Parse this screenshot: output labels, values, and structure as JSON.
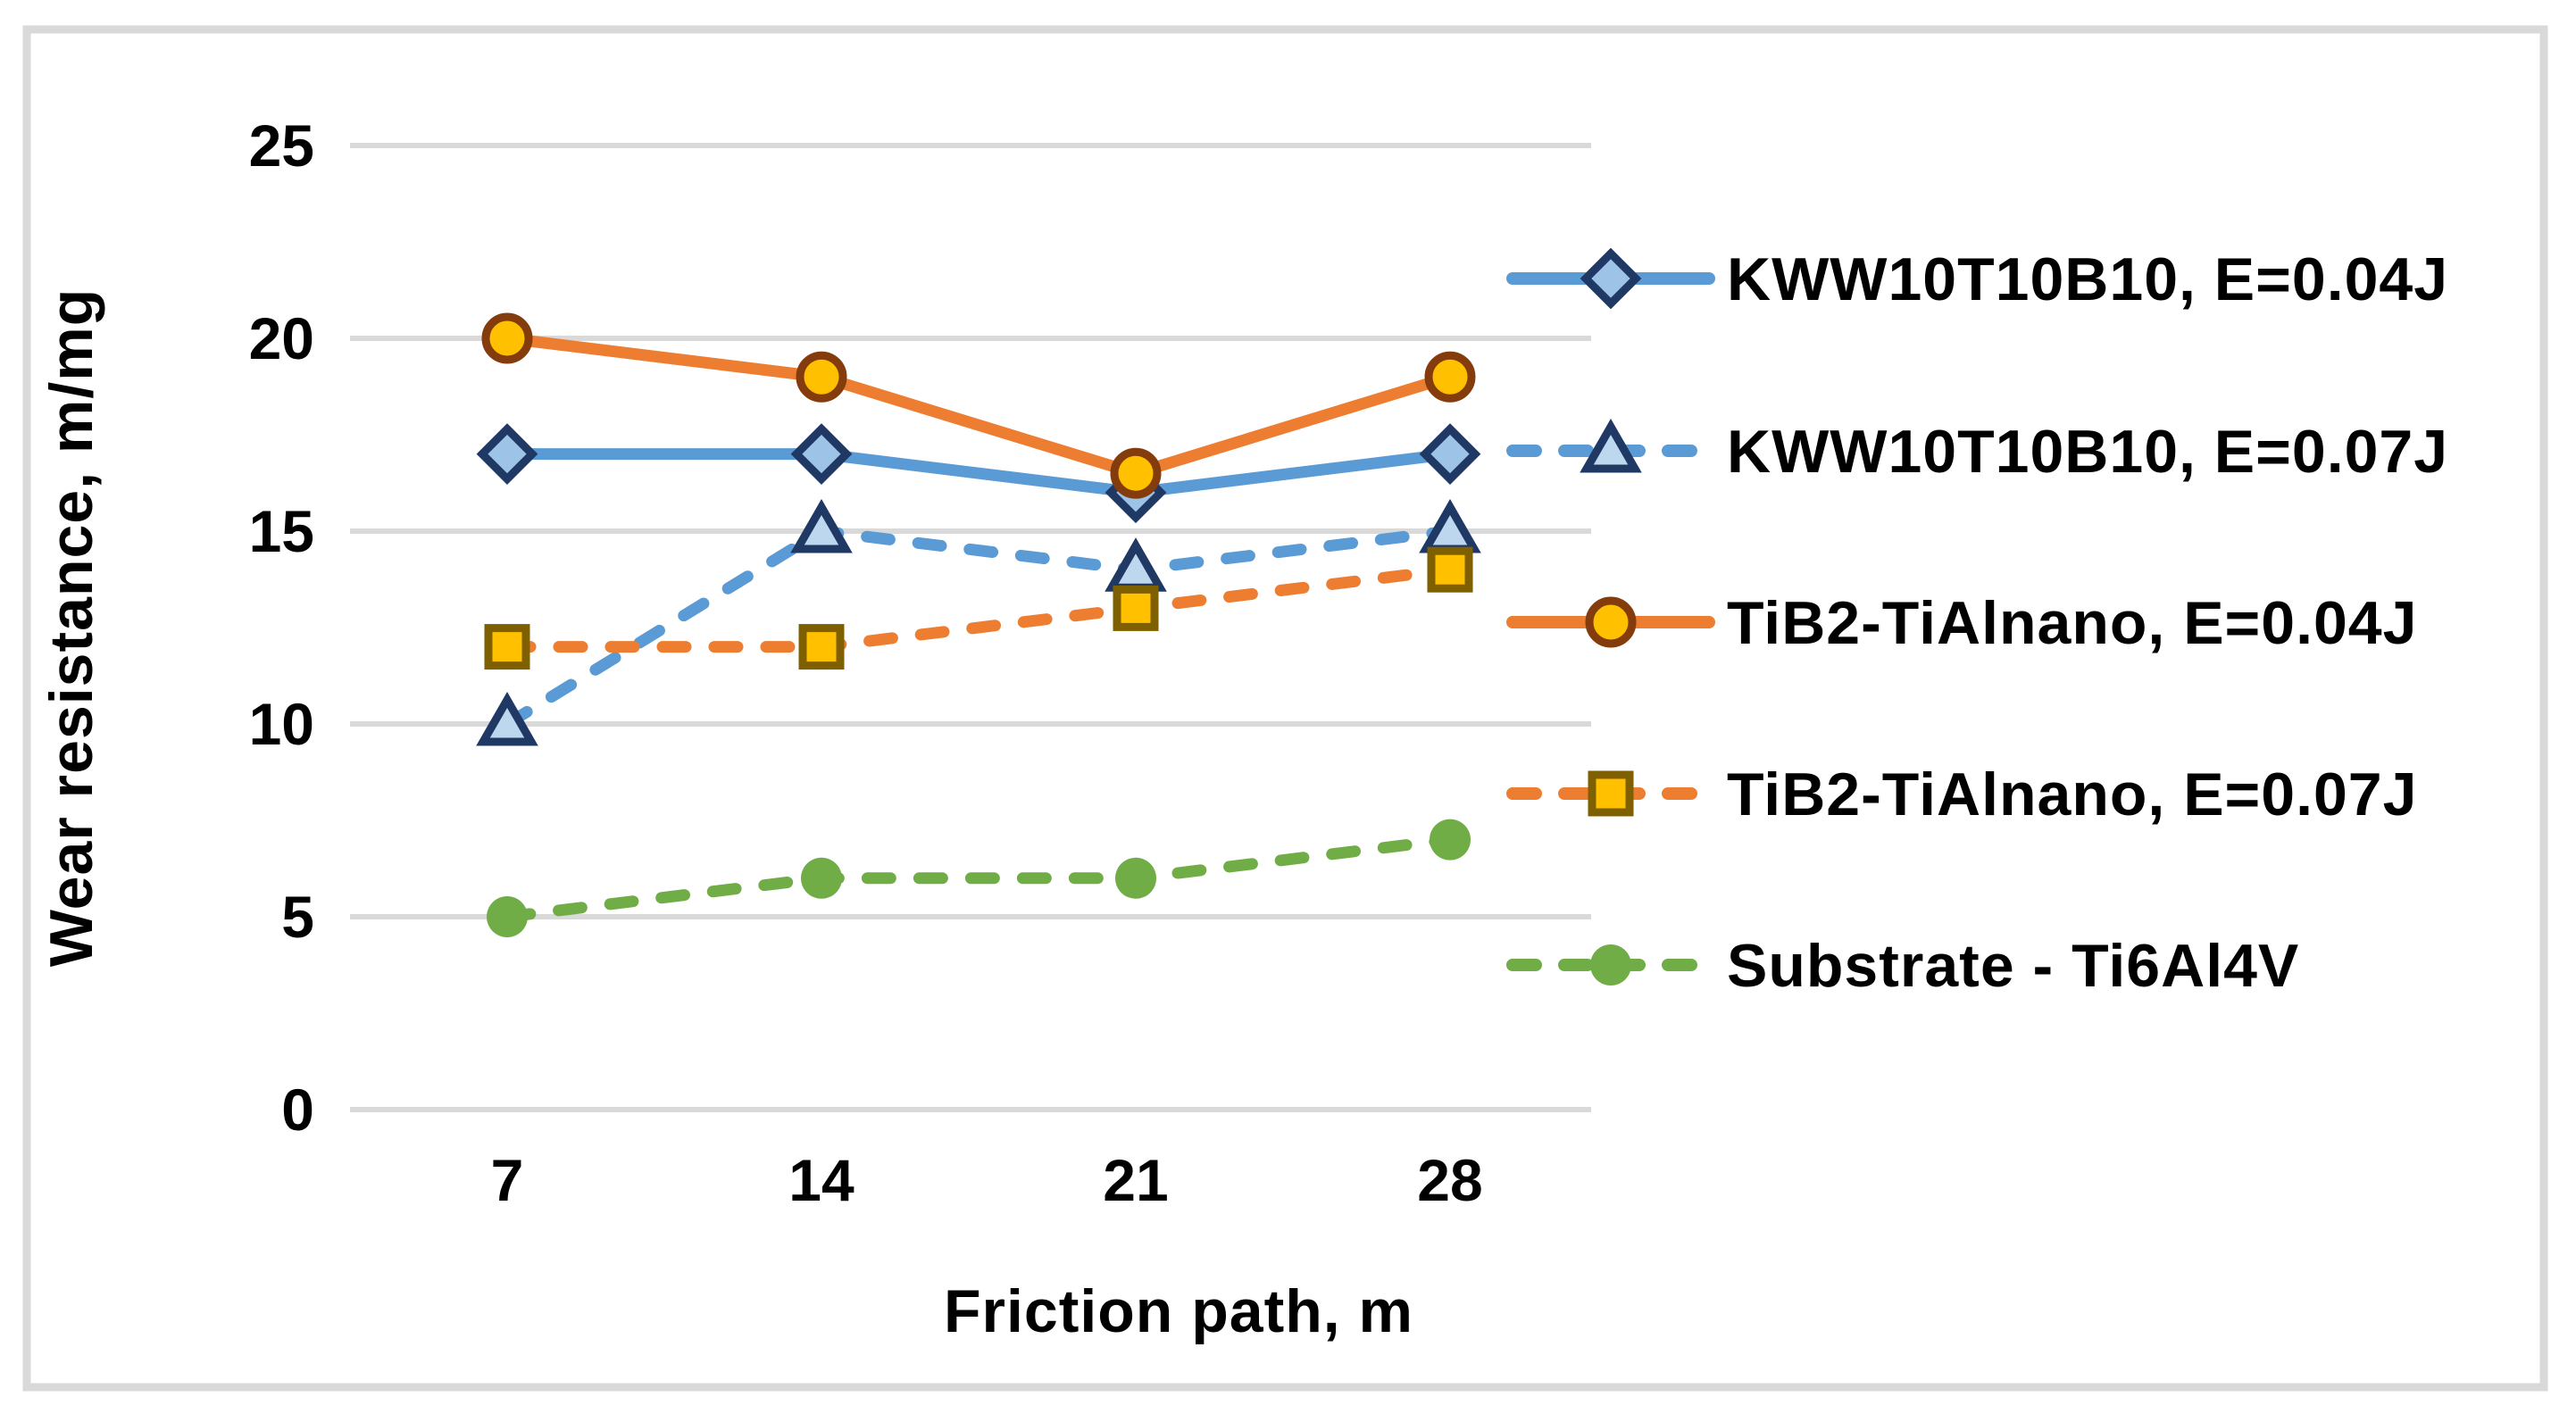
{
  "figure": {
    "border_color": "#D9D9D9",
    "background_color": "#FFFFFF"
  },
  "chart_data": {
    "type": "line",
    "title": "",
    "xlabel": "Friction path, m",
    "ylabel": "Wear resistance, m/mg",
    "x": [
      7,
      14,
      21,
      28
    ],
    "x_ticks": [
      "7",
      "14",
      "21",
      "28"
    ],
    "y_ticks": [
      "25",
      "20",
      "15",
      "10",
      "5",
      "0"
    ],
    "y_tick_values": [
      25,
      20,
      15,
      10,
      5,
      0
    ],
    "ylim": [
      0,
      25
    ],
    "grid": true,
    "gridline_color": "#D9D9D9",
    "text_color": "#000000",
    "legend_position": "right",
    "series": [
      {
        "name": "KWW10T10B10, E=0.04J",
        "values": [
          17,
          17,
          16,
          17
        ],
        "color": "#5B9BD5",
        "dashed": false,
        "marker": "diamond",
        "marker_fill": "#9DC3E6",
        "marker_stroke": "#1F3864"
      },
      {
        "name": "KWW10T10B10, E=0.07J",
        "values": [
          10,
          15,
          14,
          15
        ],
        "color": "#5B9BD5",
        "dashed": true,
        "marker": "triangle",
        "marker_fill": "#BDD7EE",
        "marker_stroke": "#1F3864"
      },
      {
        "name": "TiB2-TiAlnano, E=0.04J",
        "values": [
          20,
          19,
          16.5,
          19
        ],
        "color": "#ED7D31",
        "dashed": false,
        "marker": "circle",
        "marker_fill": "#FFC000",
        "marker_stroke": "#843C0C"
      },
      {
        "name": "TiB2-TiAlnano, E=0.07J",
        "values": [
          12,
          12,
          13,
          14
        ],
        "color": "#ED7D31",
        "dashed": true,
        "marker": "square",
        "marker_fill": "#FFC000",
        "marker_stroke": "#7F6000"
      },
      {
        "name": "Substrate - Ti6Al4V",
        "values": [
          5,
          6,
          6,
          7
        ],
        "color": "#70AD47",
        "dashed": true,
        "marker": "dot",
        "marker_fill": "#70AD47",
        "marker_stroke": "#70AD47"
      }
    ]
  }
}
